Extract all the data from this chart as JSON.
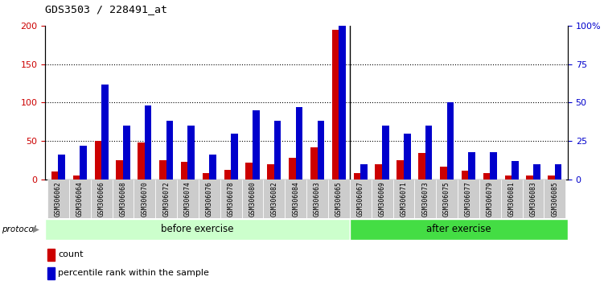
{
  "title": "GDS3503 / 228491_at",
  "samples": [
    "GSM306062",
    "GSM306064",
    "GSM306066",
    "GSM306068",
    "GSM306070",
    "GSM306072",
    "GSM306074",
    "GSM306076",
    "GSM306078",
    "GSM306080",
    "GSM306082",
    "GSM306084",
    "GSM306063",
    "GSM306065",
    "GSM306067",
    "GSM306069",
    "GSM306071",
    "GSM306073",
    "GSM306075",
    "GSM306077",
    "GSM306079",
    "GSM306081",
    "GSM306083",
    "GSM306085"
  ],
  "count": [
    10,
    5,
    50,
    25,
    48,
    25,
    23,
    8,
    13,
    22,
    20,
    28,
    42,
    195,
    8,
    20,
    25,
    35,
    17,
    12,
    8,
    5,
    5,
    5
  ],
  "percentile": [
    16,
    22,
    62,
    35,
    48,
    38,
    35,
    16,
    30,
    45,
    38,
    47,
    38,
    100,
    10,
    35,
    30,
    35,
    50,
    18,
    18,
    12,
    10,
    10
  ],
  "before_exercise_count": 14,
  "count_color": "#cc0000",
  "percentile_color": "#0000cc",
  "before_bg": "#ccffcc",
  "after_bg": "#44dd44",
  "ylim_left": [
    0,
    200
  ],
  "ylim_right": [
    0,
    100
  ],
  "yticks_left": [
    0,
    50,
    100,
    150,
    200
  ],
  "yticks_right": [
    0,
    25,
    50,
    75,
    100
  ],
  "ytick_labels_right": [
    "0",
    "25",
    "50",
    "75",
    "100%"
  ]
}
